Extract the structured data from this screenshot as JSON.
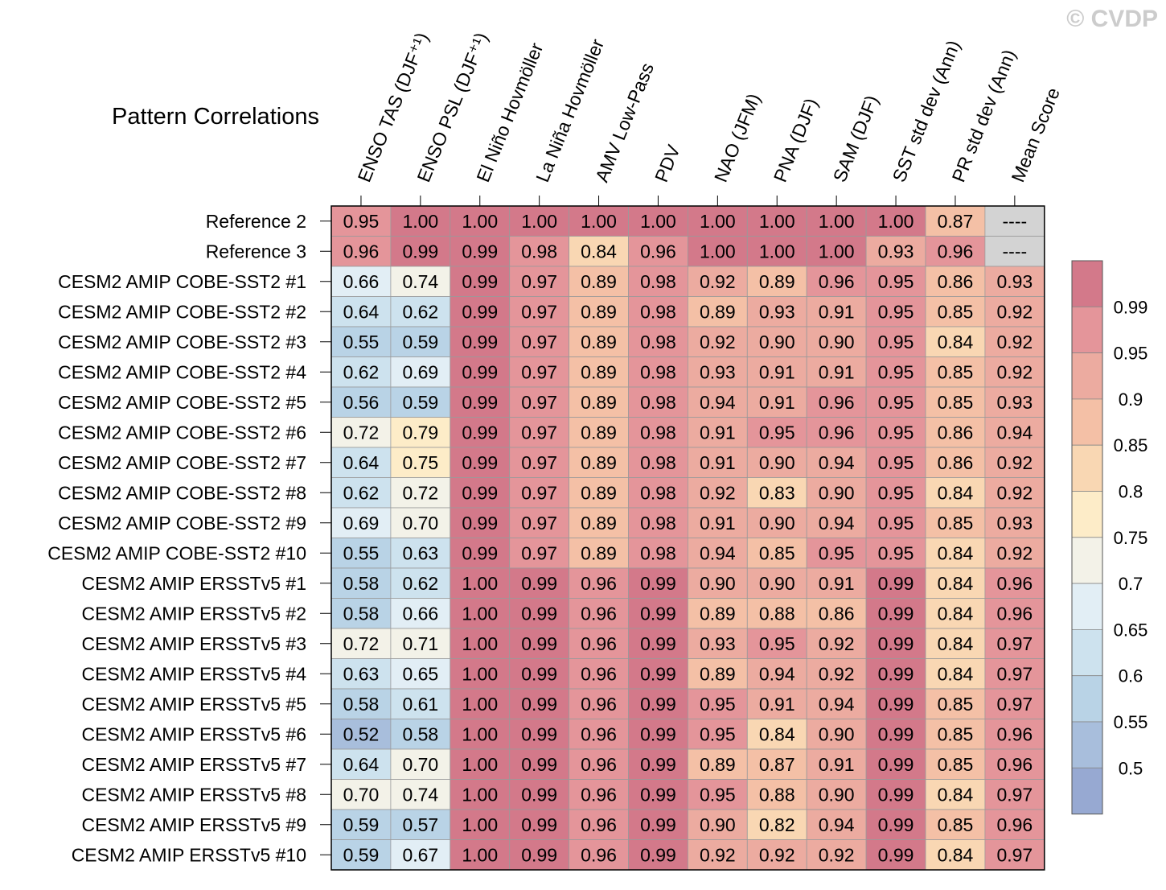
{
  "watermark": "© CVDP",
  "chart_data": {
    "type": "heatmap",
    "title": "Pattern Correlations",
    "columns": [
      "ENSO TAS (DJF⁺¹)",
      "ENSO PSL (DJF⁺¹)",
      "El Niño Hovmöller",
      "La Niña Hovmöller",
      "AMV Low-Pass",
      "PDV",
      "NAO (JFM)",
      "PNA (DJF)",
      "SAM (DJF)",
      "SST std dev (Ann)",
      "PR std dev (Ann)",
      "Mean Score"
    ],
    "rows": [
      {
        "name": "Reference 2",
        "values": [
          "0.95",
          "1.00",
          "1.00",
          "1.00",
          "1.00",
          "1.00",
          "1.00",
          "1.00",
          "1.00",
          "1.00",
          "0.87",
          "----"
        ]
      },
      {
        "name": "Reference 3",
        "values": [
          "0.96",
          "0.99",
          "0.99",
          "0.98",
          "0.84",
          "0.96",
          "1.00",
          "1.00",
          "1.00",
          "0.93",
          "0.96",
          "----"
        ]
      },
      {
        "name": "CESM2 AMIP COBE-SST2 #1",
        "values": [
          "0.66",
          "0.74",
          "0.99",
          "0.97",
          "0.89",
          "0.98",
          "0.92",
          "0.89",
          "0.96",
          "0.95",
          "0.86",
          "0.93"
        ]
      },
      {
        "name": "CESM2 AMIP COBE-SST2 #2",
        "values": [
          "0.64",
          "0.62",
          "0.99",
          "0.97",
          "0.89",
          "0.98",
          "0.89",
          "0.93",
          "0.91",
          "0.95",
          "0.85",
          "0.92"
        ]
      },
      {
        "name": "CESM2 AMIP COBE-SST2 #3",
        "values": [
          "0.55",
          "0.59",
          "0.99",
          "0.97",
          "0.89",
          "0.98",
          "0.92",
          "0.90",
          "0.90",
          "0.95",
          "0.84",
          "0.92"
        ]
      },
      {
        "name": "CESM2 AMIP COBE-SST2 #4",
        "values": [
          "0.62",
          "0.69",
          "0.99",
          "0.97",
          "0.89",
          "0.98",
          "0.93",
          "0.91",
          "0.91",
          "0.95",
          "0.85",
          "0.92"
        ]
      },
      {
        "name": "CESM2 AMIP COBE-SST2 #5",
        "values": [
          "0.56",
          "0.59",
          "0.99",
          "0.97",
          "0.89",
          "0.98",
          "0.94",
          "0.91",
          "0.96",
          "0.95",
          "0.85",
          "0.93"
        ]
      },
      {
        "name": "CESM2 AMIP COBE-SST2 #6",
        "values": [
          "0.72",
          "0.79",
          "0.99",
          "0.97",
          "0.89",
          "0.98",
          "0.91",
          "0.95",
          "0.96",
          "0.95",
          "0.86",
          "0.94"
        ]
      },
      {
        "name": "CESM2 AMIP COBE-SST2 #7",
        "values": [
          "0.64",
          "0.75",
          "0.99",
          "0.97",
          "0.89",
          "0.98",
          "0.91",
          "0.90",
          "0.94",
          "0.95",
          "0.86",
          "0.92"
        ]
      },
      {
        "name": "CESM2 AMIP COBE-SST2 #8",
        "values": [
          "0.62",
          "0.72",
          "0.99",
          "0.97",
          "0.89",
          "0.98",
          "0.92",
          "0.83",
          "0.90",
          "0.95",
          "0.84",
          "0.92"
        ]
      },
      {
        "name": "CESM2 AMIP COBE-SST2 #9",
        "values": [
          "0.69",
          "0.70",
          "0.99",
          "0.97",
          "0.89",
          "0.98",
          "0.91",
          "0.90",
          "0.94",
          "0.95",
          "0.85",
          "0.93"
        ]
      },
      {
        "name": "CESM2 AMIP COBE-SST2 #10",
        "values": [
          "0.55",
          "0.63",
          "0.99",
          "0.97",
          "0.89",
          "0.98",
          "0.94",
          "0.85",
          "0.95",
          "0.95",
          "0.84",
          "0.92"
        ]
      },
      {
        "name": "CESM2 AMIP ERSSTv5 #1",
        "values": [
          "0.58",
          "0.62",
          "1.00",
          "0.99",
          "0.96",
          "0.99",
          "0.90",
          "0.90",
          "0.91",
          "0.99",
          "0.84",
          "0.96"
        ]
      },
      {
        "name": "CESM2 AMIP ERSSTv5 #2",
        "values": [
          "0.58",
          "0.66",
          "1.00",
          "0.99",
          "0.96",
          "0.99",
          "0.89",
          "0.88",
          "0.86",
          "0.99",
          "0.84",
          "0.96"
        ]
      },
      {
        "name": "CESM2 AMIP ERSSTv5 #3",
        "values": [
          "0.72",
          "0.71",
          "1.00",
          "0.99",
          "0.96",
          "0.99",
          "0.93",
          "0.95",
          "0.92",
          "0.99",
          "0.84",
          "0.97"
        ]
      },
      {
        "name": "CESM2 AMIP ERSSTv5 #4",
        "values": [
          "0.63",
          "0.65",
          "1.00",
          "0.99",
          "0.96",
          "0.99",
          "0.89",
          "0.94",
          "0.92",
          "0.99",
          "0.84",
          "0.97"
        ]
      },
      {
        "name": "CESM2 AMIP ERSSTv5 #5",
        "values": [
          "0.58",
          "0.61",
          "1.00",
          "0.99",
          "0.96",
          "0.99",
          "0.95",
          "0.91",
          "0.94",
          "0.99",
          "0.85",
          "0.97"
        ]
      },
      {
        "name": "CESM2 AMIP ERSSTv5 #6",
        "values": [
          "0.52",
          "0.58",
          "1.00",
          "0.99",
          "0.96",
          "0.99",
          "0.95",
          "0.84",
          "0.90",
          "0.99",
          "0.85",
          "0.96"
        ]
      },
      {
        "name": "CESM2 AMIP ERSSTv5 #7",
        "values": [
          "0.64",
          "0.70",
          "1.00",
          "0.99",
          "0.96",
          "0.99",
          "0.89",
          "0.87",
          "0.91",
          "0.99",
          "0.85",
          "0.96"
        ]
      },
      {
        "name": "CESM2 AMIP ERSSTv5 #8",
        "values": [
          "0.70",
          "0.74",
          "1.00",
          "0.99",
          "0.96",
          "0.99",
          "0.95",
          "0.88",
          "0.90",
          "0.99",
          "0.84",
          "0.97"
        ]
      },
      {
        "name": "CESM2 AMIP ERSSTv5 #9",
        "values": [
          "0.59",
          "0.57",
          "1.00",
          "0.99",
          "0.96",
          "0.99",
          "0.90",
          "0.82",
          "0.94",
          "0.99",
          "0.85",
          "0.96"
        ]
      },
      {
        "name": "CESM2 AMIP ERSSTv5 #10",
        "values": [
          "0.59",
          "0.67",
          "1.00",
          "0.99",
          "0.96",
          "0.99",
          "0.92",
          "0.92",
          "0.92",
          "0.99",
          "0.84",
          "0.97"
        ]
      }
    ],
    "colorbar": {
      "labels": [
        "0.99",
        "0.95",
        "0.9",
        "0.85",
        "0.8",
        "0.75",
        "0.7",
        "0.65",
        "0.6",
        "0.55",
        "0.5"
      ],
      "colors_top_to_bottom": [
        "#d3798a",
        "#e4959a",
        "#ecaba0",
        "#f4c0a6",
        "#f9d7b3",
        "#fdecc8",
        "#f3f2e8",
        "#e2eef5",
        "#cde2ee",
        "#b9d3e6",
        "#a8bedc",
        "#97a9d2"
      ],
      "missing_color": "#d3d3d3"
    },
    "cell_colors": {
      "thresholds_desc": [
        0.99,
        0.95,
        0.9,
        0.85,
        0.8,
        0.75,
        0.7,
        0.65,
        0.6,
        0.55,
        0.5
      ],
      "colors": [
        "#d3798a",
        "#e4959a",
        "#ecaba0",
        "#f4c0a6",
        "#f9d7b3",
        "#fdecc8",
        "#f3f2e8",
        "#e2eef5",
        "#cde2ee",
        "#b9d3e6",
        "#a8bedc",
        "#97a9d2"
      ]
    }
  }
}
